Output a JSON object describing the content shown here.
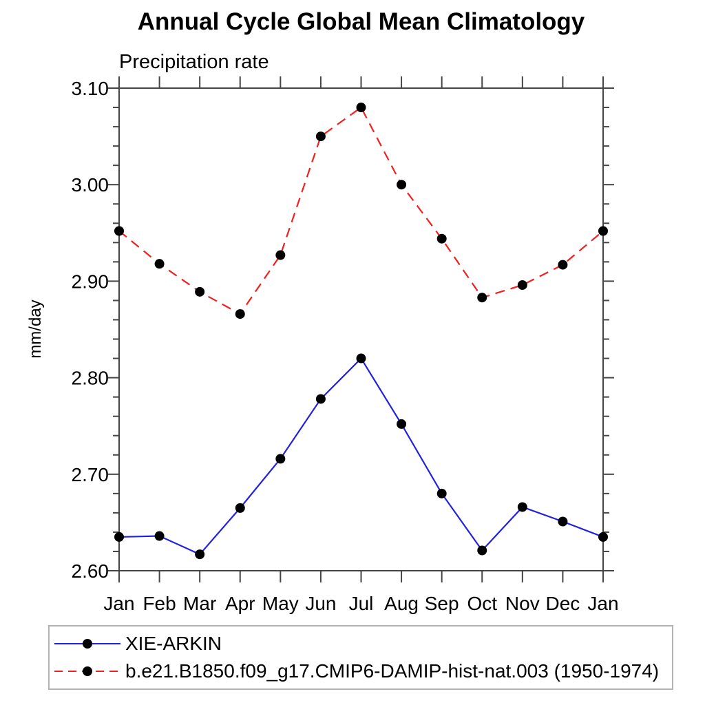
{
  "chart_data": {
    "type": "line",
    "title": "Annual Cycle Global Mean Climatology",
    "subtitle": "Precipitation rate",
    "ylabel": "mm/day",
    "categories": [
      "Jan",
      "Feb",
      "Mar",
      "Apr",
      "May",
      "Jun",
      "Jul",
      "Aug",
      "Sep",
      "Oct",
      "Nov",
      "Dec",
      "Jan"
    ],
    "ylim": [
      2.6,
      3.1
    ],
    "y_tick_labels": [
      "2.60",
      "2.70",
      "2.80",
      "2.90",
      "3.00",
      "3.10"
    ],
    "y_major_tick_step": 0.1,
    "y_minor_tick_step": 0.02,
    "grid": false,
    "legend_position": "bottom-left-box",
    "series": [
      {
        "name": "XIE-ARKIN",
        "line_color": "#2222dd",
        "line_style": "solid",
        "marker": "black-filled-circle",
        "values": [
          2.635,
          2.636,
          2.617,
          2.665,
          2.716,
          2.778,
          2.82,
          2.752,
          2.68,
          2.621,
          2.666,
          2.651,
          2.635
        ]
      },
      {
        "name": "b.e21.B1850.f09_g17.CMIP6-DAMIP-hist-nat.003 (1950-1974)",
        "line_color": "#ee2020",
        "line_style": "dashed",
        "marker": "black-filled-circle",
        "values": [
          2.952,
          2.918,
          2.889,
          2.866,
          2.927,
          3.05,
          3.08,
          3.0,
          2.944,
          2.883,
          2.896,
          2.917,
          2.952
        ]
      }
    ]
  },
  "colors": {
    "background": "#ffffff",
    "axis": "#454545",
    "text": "#000000",
    "marker": "#000000",
    "legend_border": "#b3b3b3"
  }
}
